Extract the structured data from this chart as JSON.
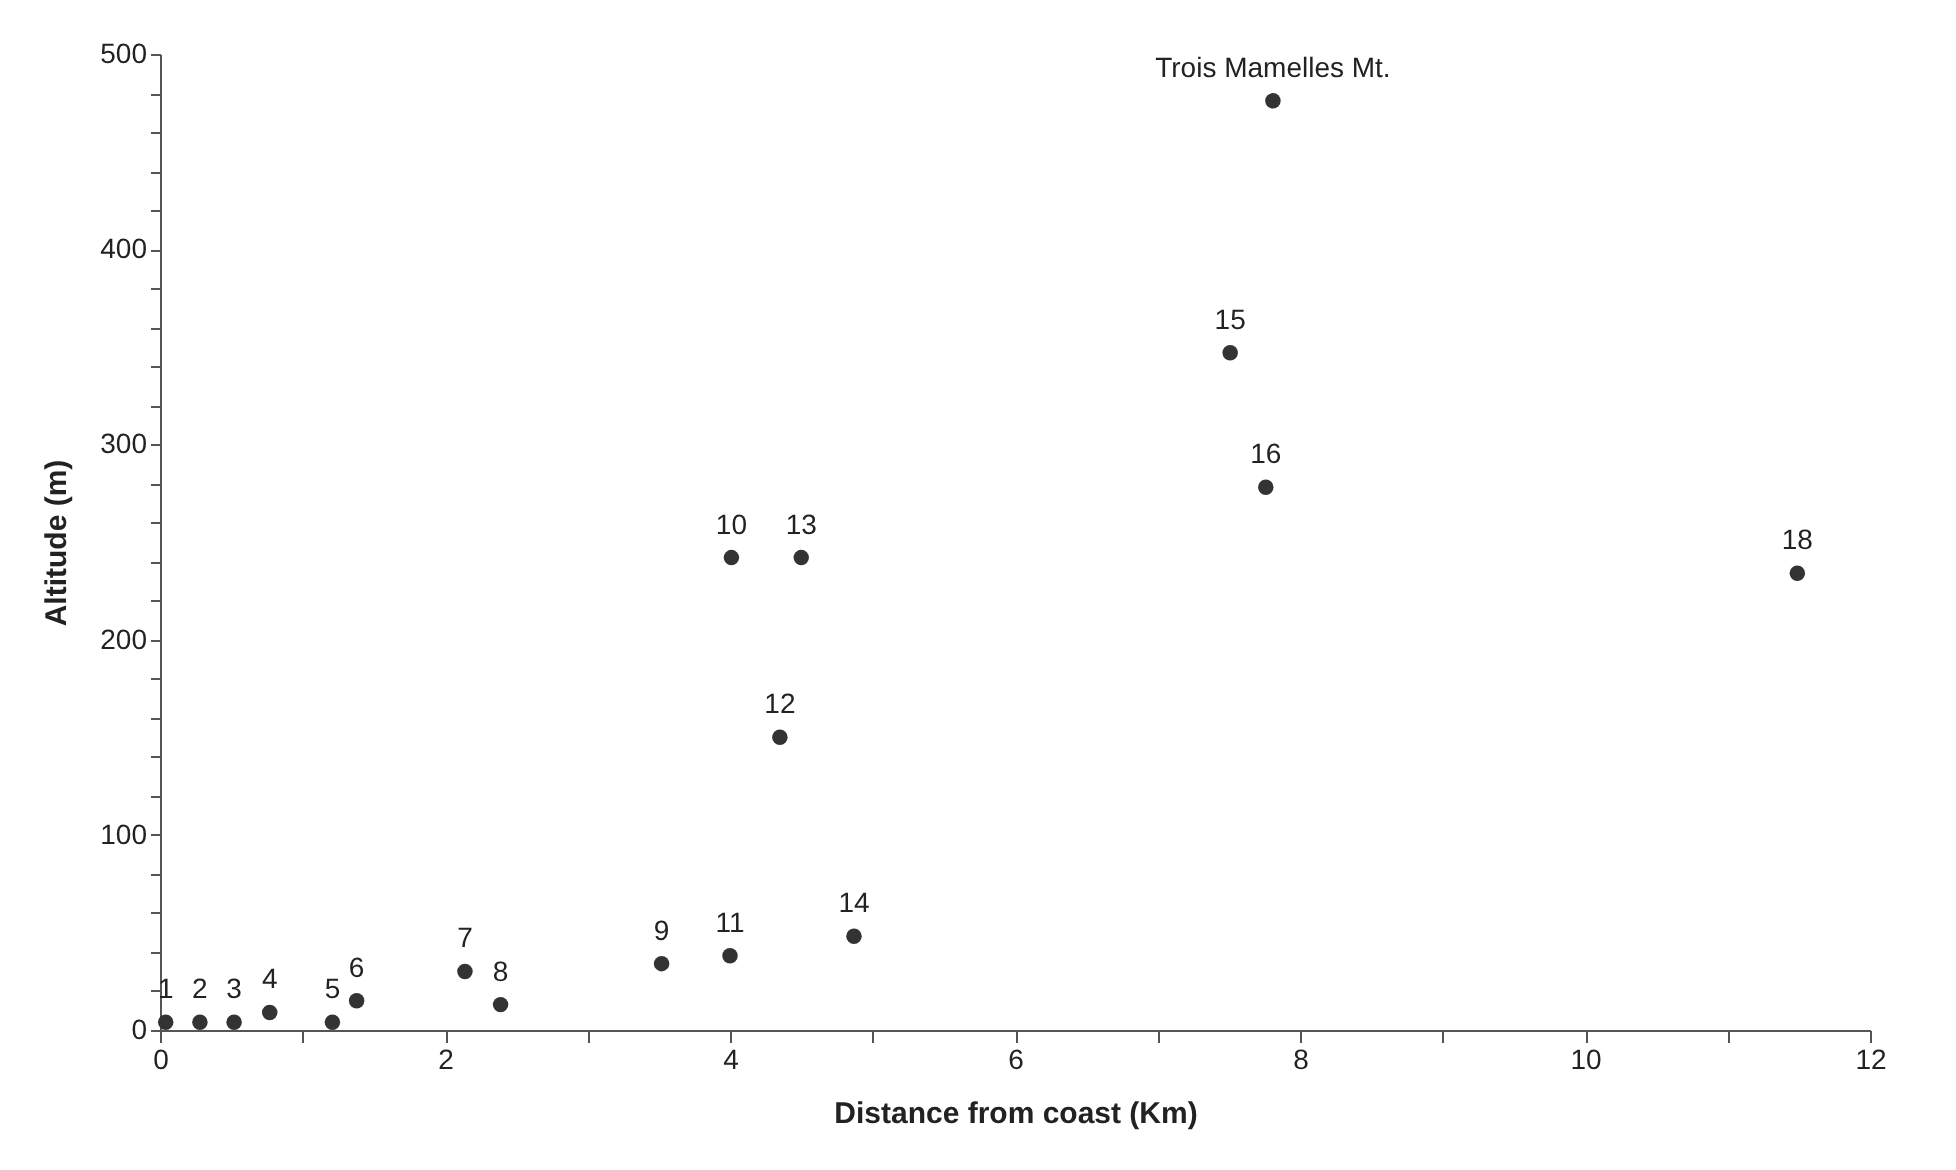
{
  "chart_data": {
    "type": "scatter",
    "xlabel": "Distance from coast (Km)",
    "ylabel": "Altitude (m)",
    "x": [
      0.04,
      0.28,
      0.52,
      0.77,
      1.21,
      1.38,
      2.14,
      2.39,
      3.52,
      4.01,
      4.0,
      4.35,
      4.5,
      4.87,
      7.51,
      7.76,
      11.49,
      7.81
    ],
    "values": [
      4,
      4,
      4,
      9,
      4,
      15,
      30,
      13,
      34,
      242,
      38,
      150,
      242,
      48,
      347,
      278,
      234,
      476
    ],
    "annotations": [
      {
        "text": "1",
        "x": 0.04,
        "y": 4
      },
      {
        "text": "2",
        "x": 0.28,
        "y": 4
      },
      {
        "text": "3",
        "x": 0.52,
        "y": 4
      },
      {
        "text": "4",
        "x": 0.77,
        "y": 9
      },
      {
        "text": "5",
        "x": 1.21,
        "y": 4
      },
      {
        "text": "6",
        "x": 1.38,
        "y": 15
      },
      {
        "text": "7",
        "x": 2.14,
        "y": 30
      },
      {
        "text": "8",
        "x": 2.39,
        "y": 13
      },
      {
        "text": "9",
        "x": 3.52,
        "y": 34
      },
      {
        "text": "10",
        "x": 4.01,
        "y": 242
      },
      {
        "text": "11",
        "x": 4.0,
        "y": 38
      },
      {
        "text": "12",
        "x": 4.35,
        "y": 150
      },
      {
        "text": "13",
        "x": 4.5,
        "y": 242
      },
      {
        "text": "14",
        "x": 4.87,
        "y": 48
      },
      {
        "text": "15",
        "x": 7.51,
        "y": 347
      },
      {
        "text": "16",
        "x": 7.76,
        "y": 278
      },
      {
        "text": "18",
        "x": 11.49,
        "y": 234
      },
      {
        "text": "Trois Mamelles Mt.",
        "x": 7.81,
        "y": 476
      }
    ],
    "color": "#333333",
    "marker": "circle",
    "xlim": [
      0,
      12
    ],
    "ylim": [
      0,
      500
    ],
    "xticks": [
      0,
      {
        "value": 1,
        "label": null
      },
      2,
      {
        "value": 3,
        "label": null
      },
      4,
      {
        "value": 5,
        "label": null
      },
      6,
      {
        "value": 7,
        "label": null
      },
      8,
      {
        "value": 9,
        "label": null
      },
      10,
      {
        "value": 11,
        "label": null
      },
      12
    ],
    "yticks": [
      0,
      {
        "value": 20,
        "label": null
      },
      {
        "value": 40,
        "label": null
      },
      {
        "value": 60,
        "label": null
      },
      {
        "value": 80,
        "label": null
      },
      100,
      {
        "value": 120,
        "label": null
      },
      {
        "value": 140,
        "label": null
      },
      {
        "value": 160,
        "label": null
      },
      {
        "value": 180,
        "label": null
      },
      200,
      {
        "value": 220,
        "label": null
      },
      {
        "value": 240,
        "label": null
      },
      {
        "value": 260,
        "label": null
      },
      {
        "value": 280,
        "label": null
      },
      300,
      {
        "value": 320,
        "label": null
      },
      {
        "value": 340,
        "label": null
      },
      {
        "value": 360,
        "label": null
      },
      {
        "value": 380,
        "label": null
      },
      400,
      {
        "value": 420,
        "label": null
      },
      {
        "value": 440,
        "label": null
      },
      {
        "value": 460,
        "label": null
      },
      {
        "value": 480,
        "label": null
      },
      500
    ],
    "grid": false
  }
}
